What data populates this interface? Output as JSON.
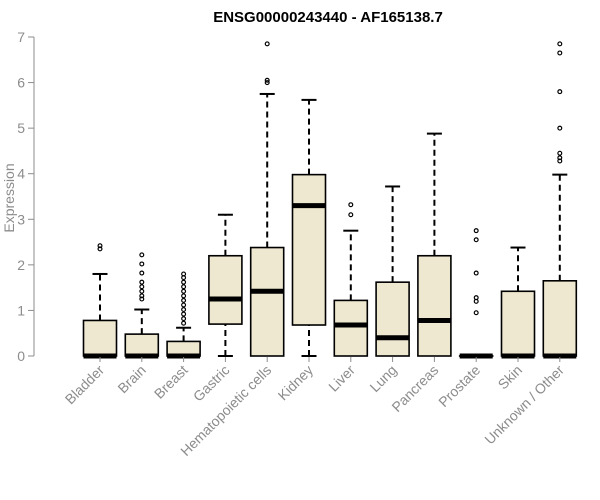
{
  "chart_data": {
    "type": "boxplot",
    "title": "ENSG00000243440 - AF165138.7",
    "ylabel": "Expression",
    "xlabel": "",
    "ylim": [
      0,
      7
    ],
    "yticks": [
      "0",
      "1",
      "2",
      "3",
      "4",
      "5",
      "6",
      "7"
    ],
    "grid": false,
    "box_fill": "#efe8d0",
    "categories": [
      "Bladder",
      "Brain",
      "Breast",
      "Gastric",
      "Hematopoietic cells",
      "Kidney",
      "Liver",
      "Lung",
      "Pancreas",
      "Prostate",
      "Skin",
      "Unknown / Other"
    ],
    "boxes": [
      {
        "q1": 0,
        "median": 0,
        "q3": 0.78,
        "whisker_low": 0,
        "whisker_high": 1.8,
        "outliers": [
          2.35,
          2.42
        ]
      },
      {
        "q1": 0,
        "median": 0,
        "q3": 0.48,
        "whisker_low": 0,
        "whisker_high": 1.02,
        "outliers": [
          1.25,
          1.32,
          1.42,
          1.52,
          1.62,
          1.82,
          2.02,
          2.22
        ]
      },
      {
        "q1": 0,
        "median": 0,
        "q3": 0.32,
        "whisker_low": 0,
        "whisker_high": 0.62,
        "outliers": [
          0.72,
          0.82,
          0.92,
          1.02,
          1.12,
          1.22,
          1.32,
          1.42,
          1.52,
          1.62,
          1.72,
          1.8
        ]
      },
      {
        "q1": 0.7,
        "median": 1.25,
        "q3": 2.2,
        "whisker_low": 0,
        "whisker_high": 3.1,
        "outliers": []
      },
      {
        "q1": 0,
        "median": 1.42,
        "q3": 2.38,
        "whisker_low": 0,
        "whisker_high": 5.75,
        "outliers": [
          6.0,
          6.05,
          6.85
        ]
      },
      {
        "q1": 0.68,
        "median": 3.3,
        "q3": 3.98,
        "whisker_low": 0,
        "whisker_high": 5.62,
        "outliers": []
      },
      {
        "q1": 0,
        "median": 0.68,
        "q3": 1.22,
        "whisker_low": 0,
        "whisker_high": 2.75,
        "outliers": [
          3.1,
          3.32
        ]
      },
      {
        "q1": 0,
        "median": 0.4,
        "q3": 1.62,
        "whisker_low": 0,
        "whisker_high": 3.72,
        "outliers": []
      },
      {
        "q1": 0,
        "median": 0.78,
        "q3": 2.2,
        "whisker_low": 0,
        "whisker_high": 4.88,
        "outliers": []
      },
      {
        "q1": 0,
        "median": 0,
        "q3": 0,
        "whisker_low": 0,
        "whisker_high": 0,
        "outliers": [
          0.95,
          1.2,
          1.28,
          1.82,
          2.55,
          2.75
        ]
      },
      {
        "q1": 0,
        "median": 0,
        "q3": 1.42,
        "whisker_low": 0,
        "whisker_high": 2.38,
        "outliers": []
      },
      {
        "q1": 0,
        "median": 0,
        "q3": 1.65,
        "whisker_low": 0,
        "whisker_high": 3.98,
        "outliers": [
          4.28,
          4.35,
          4.45,
          5.0,
          5.8,
          6.65,
          6.85
        ]
      }
    ]
  }
}
